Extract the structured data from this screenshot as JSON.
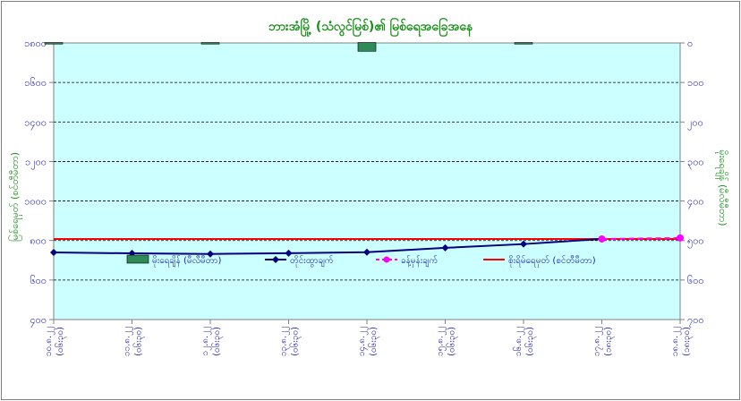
{
  "chart_data": {
    "type": "line",
    "title": "ဘားအံမြို့ (သံလွင်မြစ်)၏ မြစ်ရေအခြေအနေ",
    "ylabel_left": "မြစ်ရေမှတ် (စင်တီမီတာ)",
    "ylabel_right": "မိုးရေချိန် (မီလီမီတာ)",
    "ylim_left": [
      400,
      1800
    ],
    "ylim_right": [
      700,
      0
    ],
    "yticks_left": [
      {
        "value": 1800,
        "label": "၁၈၀၀"
      },
      {
        "value": 1600,
        "label": "၁၆၀၀"
      },
      {
        "value": 1400,
        "label": "၁၄၀၀"
      },
      {
        "value": 1200,
        "label": "၁၂၀၀"
      },
      {
        "value": 1000,
        "label": "၁၀၀၀"
      },
      {
        "value": 800,
        "label": "၈၀၀"
      },
      {
        "value": 600,
        "label": "၆၀၀"
      },
      {
        "value": 400,
        "label": "၄၀၀"
      }
    ],
    "yticks_right": [
      {
        "value": 0,
        "label": "၀"
      },
      {
        "value": 100,
        "label": "၁၀၀"
      },
      {
        "value": 200,
        "label": "၂၀၀"
      },
      {
        "value": 300,
        "label": "၃၀၀"
      },
      {
        "value": 400,
        "label": "၄၀၀"
      },
      {
        "value": 500,
        "label": "၅၀၀"
      },
      {
        "value": 600,
        "label": "၆၀၀"
      },
      {
        "value": 700,
        "label": "၇၀၀"
      }
    ],
    "categories": [
      {
        "date": "၁၀.၈.၂၂",
        "tag": "(၀၆း၃၀)"
      },
      {
        "date": "၁၁.၈.၂၂",
        "tag": "(၀၆း၃၀)"
      },
      {
        "date": "၁၂.၈.၂၂",
        "tag": "(၀၆း၃၀)"
      },
      {
        "date": "၁၃.၈.၂၂",
        "tag": "(၀၆း၃၀)"
      },
      {
        "date": "၁၄.၈.၂၂",
        "tag": "(၀၆း၃၀)"
      },
      {
        "date": "၁၅.၈.၂၂",
        "tag": "(၀၆း၃၀)"
      },
      {
        "date": "၁၆.၈.၂၂",
        "tag": "(၀၆း၃၀)"
      },
      {
        "date": "၁၇.၈.၂၂",
        "tag": "(၁၈း၃၀)"
      },
      {
        "date": "၁၈.၈.၂၂",
        "tag": "(၁၈း၃၀)"
      }
    ],
    "series": [
      {
        "name": "မိုးရေချိန် (မီလီမီတာ)",
        "kind": "bar",
        "axis": "right",
        "color": "#2e8b57",
        "values": [
          0,
          null,
          1,
          null,
          21,
          null,
          0,
          null,
          null
        ]
      },
      {
        "name": "တိုင်းထွာချက်",
        "kind": "line",
        "axis": "left",
        "color": "#000080",
        "marker": "diamond",
        "values": [
          740,
          735,
          732,
          736,
          741,
          763,
          782,
          808,
          null
        ]
      },
      {
        "name": "ခန့်မှန်းချက်",
        "kind": "line",
        "axis": "left",
        "color": "#ff00ff",
        "dashed": true,
        "marker": "circle",
        "values": [
          null,
          null,
          null,
          null,
          null,
          null,
          null,
          808,
          813
        ]
      },
      {
        "name": "စိုးရိမ်ရေမှတ် (စင်တီမီတာ)",
        "kind": "hline",
        "axis": "left",
        "color": "#ff0000",
        "value": 808
      }
    ],
    "legend_position": "inside-bottom",
    "grid": true,
    "colors": {
      "plot_bg": "#ccffff",
      "grid": "#000000",
      "axis": "#808080"
    }
  }
}
